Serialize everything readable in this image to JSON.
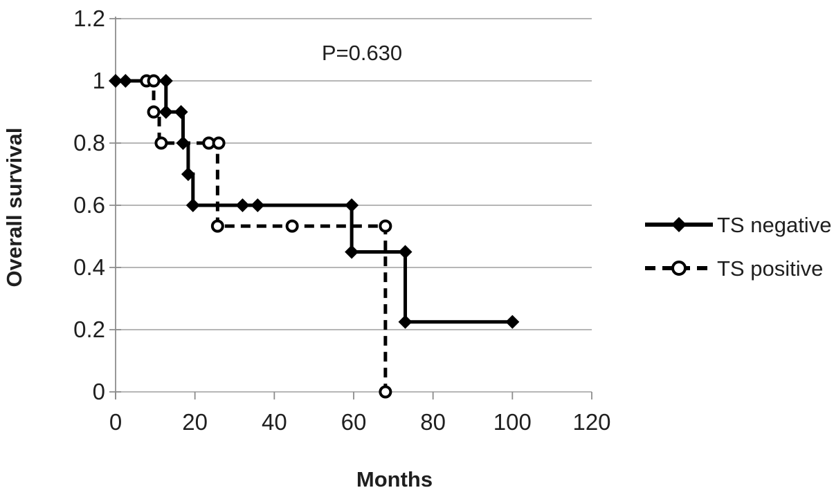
{
  "chart_data": {
    "type": "line",
    "subtype": "kaplan-meier-step",
    "title": "",
    "xlabel": "Months",
    "ylabel": "Overall survival",
    "annotation": "P=0.630",
    "xlim": [
      0,
      120
    ],
    "ylim": [
      0,
      1.2
    ],
    "x_ticks": [
      "0",
      "20",
      "40",
      "60",
      "80",
      "100",
      "120"
    ],
    "y_ticks": [
      "1.2",
      "1",
      "0.8",
      "0.6",
      "0.4",
      "0.2",
      "0"
    ],
    "grid": "horizontal",
    "legend_position": "right",
    "colors": {
      "line": "#000000",
      "text": "#1f1f1f",
      "grid": "#9d9d9d",
      "axis": "#8c8c8c",
      "marker_fill": "#ffffff"
    },
    "series": [
      {
        "name": "TS negative",
        "line_style": "solid",
        "marker": "filled-diamond",
        "steps": [
          [
            0,
            1
          ],
          [
            12.7,
            1
          ],
          [
            12.7,
            0.9
          ],
          [
            17,
            0.9
          ],
          [
            17,
            0.8
          ],
          [
            18.3,
            0.8
          ],
          [
            18.3,
            0.7
          ],
          [
            19.5,
            0.7
          ],
          [
            19.5,
            0.6
          ],
          [
            59.5,
            0.6
          ],
          [
            59.5,
            0.45
          ],
          [
            73,
            0.45
          ],
          [
            73,
            0.225
          ],
          [
            100,
            0.225
          ]
        ],
        "markers": [
          [
            0,
            1
          ],
          [
            2.5,
            1
          ],
          [
            12.7,
            1
          ],
          [
            12.7,
            0.9
          ],
          [
            16.5,
            0.9
          ],
          [
            17,
            0.8
          ],
          [
            18.3,
            0.7
          ],
          [
            19.5,
            0.6
          ],
          [
            32,
            0.6
          ],
          [
            35.8,
            0.6
          ],
          [
            59.5,
            0.6
          ],
          [
            59.5,
            0.45
          ],
          [
            73,
            0.45
          ],
          [
            73,
            0.225
          ],
          [
            100,
            0.225
          ]
        ]
      },
      {
        "name": "TS positive",
        "line_style": "dashed",
        "marker": "open-circle",
        "steps": [
          [
            0,
            1
          ],
          [
            9.6,
            1
          ],
          [
            9.6,
            0.9
          ],
          [
            11,
            0.9
          ],
          [
            11,
            0.8
          ],
          [
            25.7,
            0.8
          ],
          [
            25.7,
            0.533
          ],
          [
            68,
            0.533
          ],
          [
            68,
            0
          ]
        ],
        "markers": [
          [
            7.8,
            1
          ],
          [
            9.6,
            1
          ],
          [
            9.6,
            0.9
          ],
          [
            11.5,
            0.8
          ],
          [
            23.5,
            0.8
          ],
          [
            26,
            0.8
          ],
          [
            25.7,
            0.533
          ],
          [
            44.5,
            0.533
          ],
          [
            68,
            0.533
          ],
          [
            68,
            0
          ]
        ]
      }
    ]
  }
}
